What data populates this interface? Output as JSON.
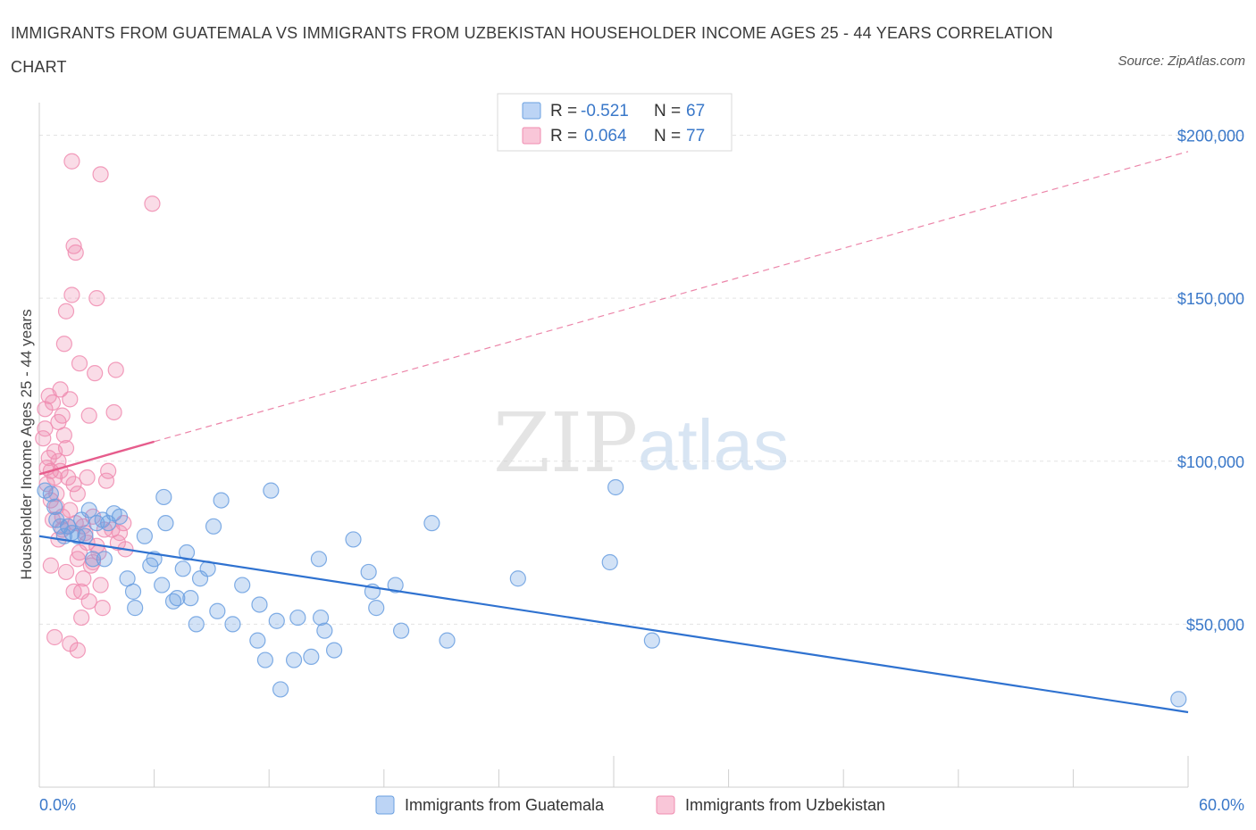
{
  "header": {
    "title": "IMMIGRANTS FROM GUATEMALA VS IMMIGRANTS FROM UZBEKISTAN HOUSEHOLDER INCOME AGES 25 - 44 YEARS CORRELATION CHART",
    "source": "Source: ZipAtlas.com"
  },
  "watermark": {
    "part1": "ZIP",
    "part2": "atlas"
  },
  "legend_top": [
    {
      "r_label": "R =",
      "r_value": "-0.521",
      "n_label": "N =",
      "n_value": "67"
    },
    {
      "r_label": "R =",
      "r_value": "0.064",
      "n_label": "N =",
      "n_value": "77"
    }
  ],
  "chart_data": {
    "type": "scatter",
    "title": "IMMIGRANTS FROM GUATEMALA VS IMMIGRANTS FROM UZBEKISTAN HOUSEHOLDER INCOME AGES 25 - 44 YEARS CORRELATION CHART",
    "xlabel": "",
    "ylabel": "Householder Income Ages 25 - 44 years",
    "xlim": [
      0,
      60
    ],
    "ylim": [
      0,
      210000
    ],
    "x_tick_labels": [
      "0.0%",
      "60.0%"
    ],
    "y_ticks": [
      50000,
      100000,
      150000,
      200000
    ],
    "y_tick_labels": [
      "$50,000",
      "$100,000",
      "$150,000",
      "$200,000"
    ],
    "grid": true,
    "legend_position": "bottom",
    "series": [
      {
        "name": "Immigrants from Guatemala",
        "color": "#6a9fe0",
        "line_color": "#2f72d0",
        "trend": {
          "x": [
            0,
            60
          ],
          "y": [
            77000,
            23000
          ],
          "dashed_extension": false
        },
        "points": [
          [
            0.3,
            91000
          ],
          [
            0.6,
            90000
          ],
          [
            0.8,
            86000
          ],
          [
            0.9,
            82000
          ],
          [
            1.1,
            80000
          ],
          [
            1.3,
            77000
          ],
          [
            1.5,
            80000
          ],
          [
            1.7,
            78000
          ],
          [
            2.0,
            77000
          ],
          [
            2.2,
            82000
          ],
          [
            2.4,
            77000
          ],
          [
            2.6,
            85000
          ],
          [
            3.0,
            81000
          ],
          [
            3.3,
            82000
          ],
          [
            3.6,
            81000
          ],
          [
            3.9,
            84000
          ],
          [
            4.2,
            83000
          ],
          [
            2.8,
            70000
          ],
          [
            3.4,
            70000
          ],
          [
            4.6,
            64000
          ],
          [
            5.0,
            55000
          ],
          [
            4.9,
            60000
          ],
          [
            5.5,
            77000
          ],
          [
            5.8,
            68000
          ],
          [
            6.0,
            70000
          ],
          [
            6.4,
            62000
          ],
          [
            6.6,
            81000
          ],
          [
            7.0,
            57000
          ],
          [
            7.2,
            58000
          ],
          [
            7.5,
            67000
          ],
          [
            7.7,
            72000
          ],
          [
            7.9,
            58000
          ],
          [
            8.2,
            50000
          ],
          [
            8.4,
            64000
          ],
          [
            8.8,
            67000
          ],
          [
            9.1,
            80000
          ],
          [
            9.3,
            54000
          ],
          [
            9.5,
            88000
          ],
          [
            10.1,
            50000
          ],
          [
            10.6,
            62000
          ],
          [
            11.4,
            45000
          ],
          [
            11.5,
            56000
          ],
          [
            11.8,
            39000
          ],
          [
            12.1,
            91000
          ],
          [
            12.4,
            51000
          ],
          [
            12.6,
            30000
          ],
          [
            13.3,
            39000
          ],
          [
            13.5,
            52000
          ],
          [
            14.2,
            40000
          ],
          [
            14.6,
            70000
          ],
          [
            14.7,
            52000
          ],
          [
            14.9,
            48000
          ],
          [
            15.4,
            42000
          ],
          [
            16.4,
            76000
          ],
          [
            17.2,
            66000
          ],
          [
            17.4,
            60000
          ],
          [
            17.6,
            55000
          ],
          [
            18.6,
            62000
          ],
          [
            18.9,
            48000
          ],
          [
            20.5,
            81000
          ],
          [
            21.3,
            45000
          ],
          [
            25.0,
            64000
          ],
          [
            29.8,
            69000
          ],
          [
            30.1,
            92000
          ],
          [
            32.0,
            45000
          ],
          [
            6.5,
            89000
          ],
          [
            59.5,
            27000
          ]
        ]
      },
      {
        "name": "Immigrants from Uzbekistan",
        "color": "#f08cb0",
        "line_color": "#e65c8c",
        "trend": {
          "x": [
            0,
            6
          ],
          "y": [
            96000,
            106000
          ],
          "extended_x": [
            6,
            60
          ],
          "extended_y": [
            106000,
            195000
          ],
          "dashed_extension": true
        },
        "points": [
          [
            0.2,
            107000
          ],
          [
            0.3,
            116000
          ],
          [
            0.3,
            110000
          ],
          [
            0.4,
            98000
          ],
          [
            0.4,
            93000
          ],
          [
            0.5,
            120000
          ],
          [
            0.5,
            101000
          ],
          [
            0.6,
            88000
          ],
          [
            0.6,
            97000
          ],
          [
            0.7,
            118000
          ],
          [
            0.7,
            82000
          ],
          [
            0.8,
            103000
          ],
          [
            0.8,
            95000
          ],
          [
            0.9,
            90000
          ],
          [
            0.9,
            86000
          ],
          [
            1.0,
            112000
          ],
          [
            1.0,
            100000
          ],
          [
            1.1,
            122000
          ],
          [
            1.1,
            97000
          ],
          [
            1.2,
            83000
          ],
          [
            1.2,
            79000
          ],
          [
            1.3,
            136000
          ],
          [
            1.3,
            108000
          ],
          [
            1.4,
            146000
          ],
          [
            1.4,
            104000
          ],
          [
            1.5,
            95000
          ],
          [
            1.5,
            80000
          ],
          [
            1.6,
            119000
          ],
          [
            1.6,
            85000
          ],
          [
            1.7,
            192000
          ],
          [
            1.7,
            151000
          ],
          [
            1.8,
            166000
          ],
          [
            1.8,
            93000
          ],
          [
            1.9,
            164000
          ],
          [
            1.9,
            81000
          ],
          [
            2.0,
            90000
          ],
          [
            2.0,
            70000
          ],
          [
            2.1,
            130000
          ],
          [
            2.1,
            72000
          ],
          [
            2.2,
            52000
          ],
          [
            2.2,
            60000
          ],
          [
            2.3,
            64000
          ],
          [
            2.4,
            78000
          ],
          [
            2.5,
            75000
          ],
          [
            2.6,
            114000
          ],
          [
            2.6,
            57000
          ],
          [
            2.7,
            68000
          ],
          [
            2.8,
            83000
          ],
          [
            2.9,
            127000
          ],
          [
            3.0,
            150000
          ],
          [
            3.0,
            74000
          ],
          [
            3.1,
            72000
          ],
          [
            3.2,
            188000
          ],
          [
            3.2,
            62000
          ],
          [
            3.3,
            55000
          ],
          [
            3.4,
            79000
          ],
          [
            3.5,
            94000
          ],
          [
            3.6,
            97000
          ],
          [
            3.8,
            79000
          ],
          [
            3.9,
            115000
          ],
          [
            4.0,
            128000
          ],
          [
            4.1,
            75000
          ],
          [
            4.2,
            78000
          ],
          [
            4.4,
            81000
          ],
          [
            4.5,
            73000
          ],
          [
            0.6,
            68000
          ],
          [
            0.8,
            46000
          ],
          [
            1.0,
            76000
          ],
          [
            1.4,
            66000
          ],
          [
            1.6,
            44000
          ],
          [
            1.8,
            60000
          ],
          [
            2.0,
            42000
          ],
          [
            2.3,
            80000
          ],
          [
            2.5,
            95000
          ],
          [
            2.8,
            69000
          ],
          [
            5.9,
            179000
          ],
          [
            1.2,
            114000
          ]
        ]
      }
    ]
  }
}
